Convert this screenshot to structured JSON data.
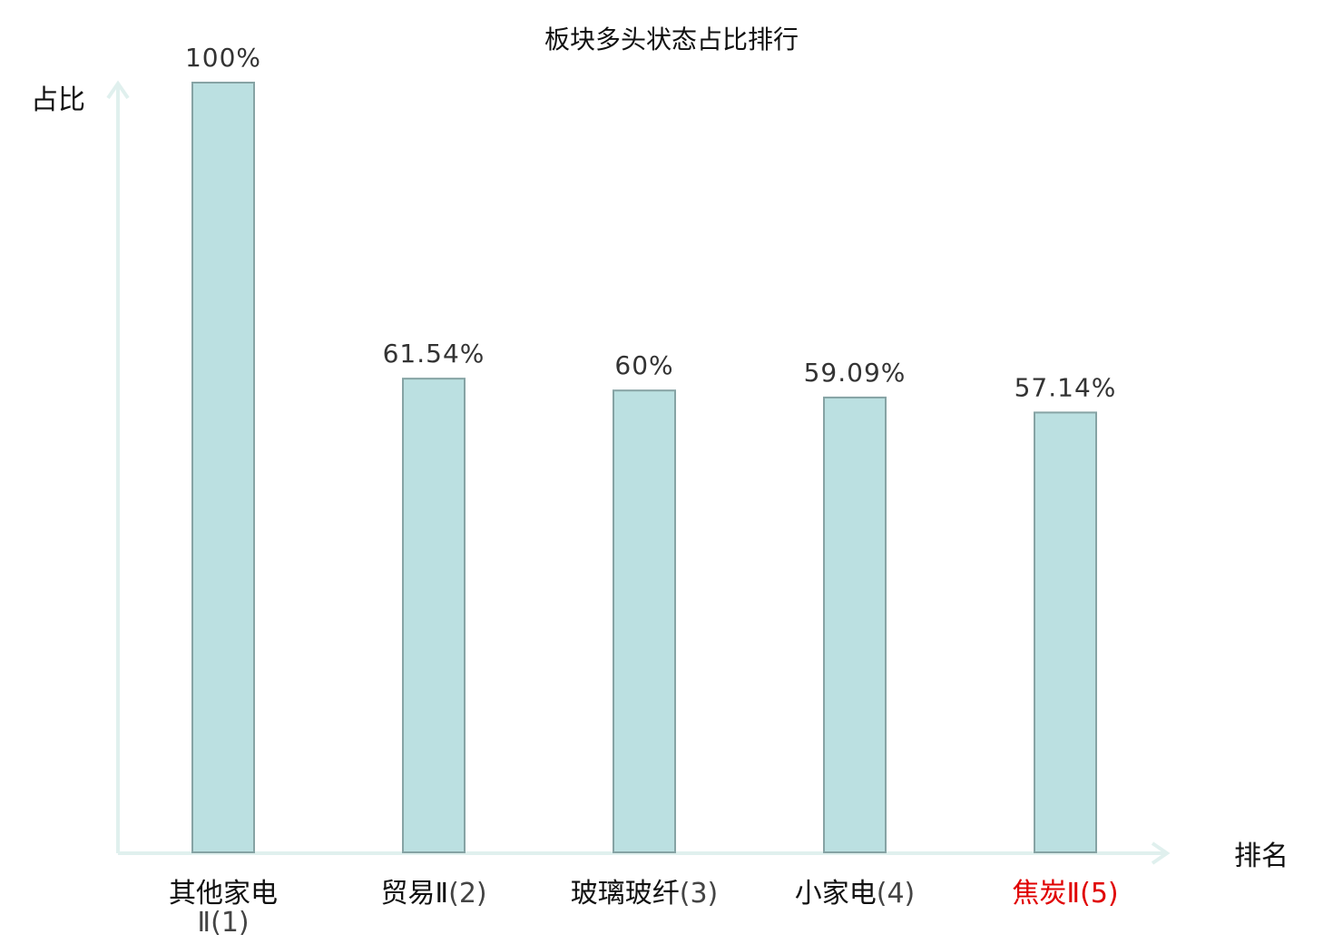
{
  "chart_data": {
    "type": "bar",
    "title": "板块多头状态占比排行",
    "ylabel": "占比",
    "xlabel": "排名",
    "ylim": [
      0,
      100
    ],
    "value_suffix": "%",
    "grid": false,
    "categories": [
      "其他家电Ⅱ",
      "贸易Ⅱ",
      "玻璃玻纤",
      "小家电",
      "焦炭Ⅱ"
    ],
    "ranks": [
      "(1)",
      "(2)",
      "(3)",
      "(4)",
      "(5)"
    ],
    "value_labels": [
      "100%",
      "61.54%",
      "60%",
      "59.09%",
      "57.14%"
    ],
    "series": [
      {
        "values": [
          100,
          61.54,
          60,
          59.09,
          57.14
        ]
      }
    ],
    "highlight_index": 4
  },
  "colors": {
    "bar_fill": "#bbe0e1",
    "bar_stroke": "#86a3a4",
    "axis": "#e0f0ee",
    "text": "#111111",
    "value_text": "#333333",
    "rank_text": "#444444",
    "highlight": "#e00000"
  }
}
